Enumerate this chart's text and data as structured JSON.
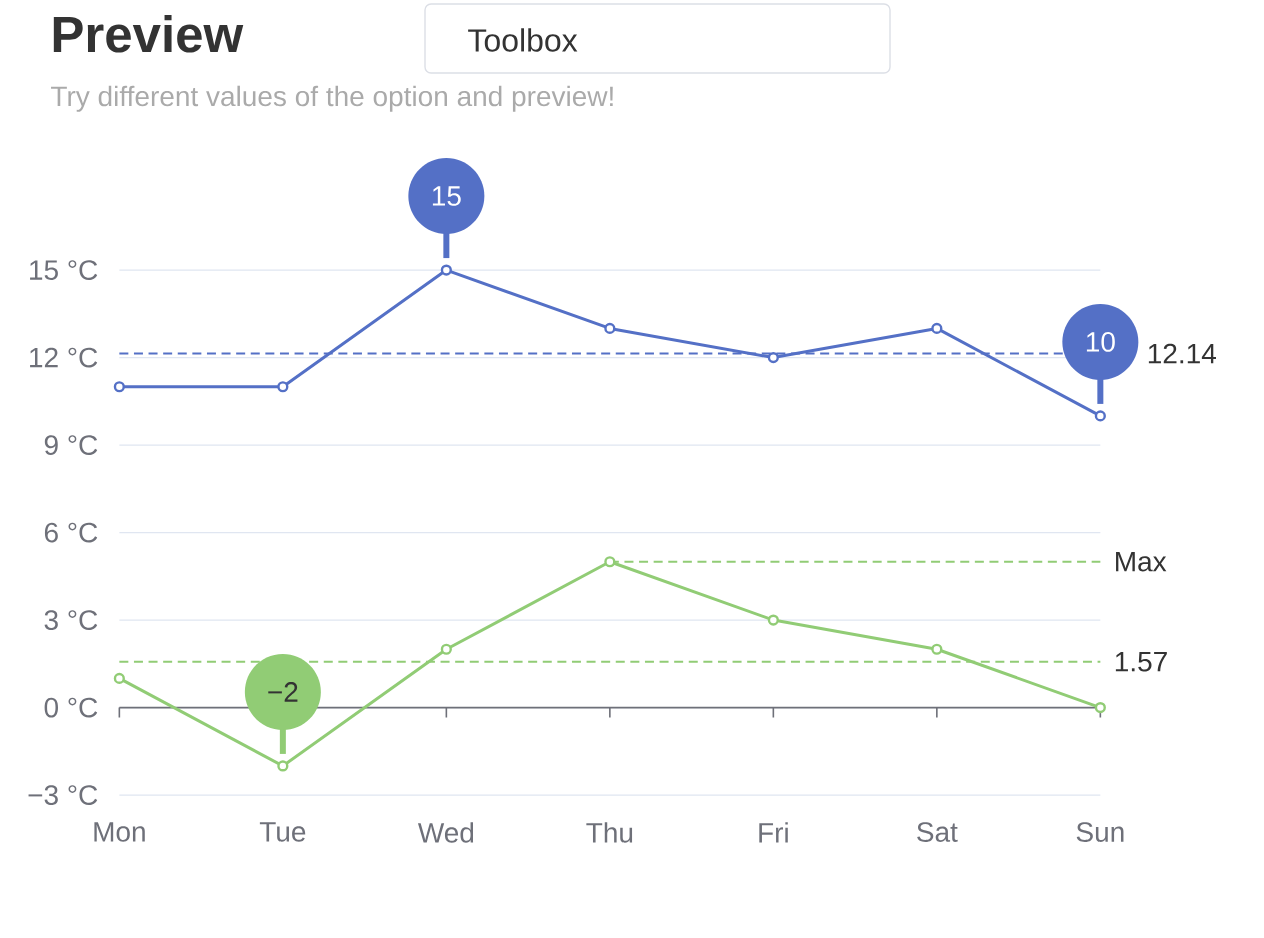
{
  "chart_data": {
    "type": "line",
    "title": "Preview",
    "subtitle": "Try different values of the option and preview!",
    "annotations": [
      "Toolbox"
    ],
    "categories": [
      "Mon",
      "Tue",
      "Wed",
      "Thu",
      "Fri",
      "Sat",
      "Sun"
    ],
    "series": [
      {
        "color": "#5470c6",
        "values": [
          11,
          11,
          15,
          13,
          12,
          13,
          10
        ],
        "value_labels": [
          null,
          null,
          "15",
          null,
          null,
          null,
          "10"
        ]
      },
      {
        "color": "#91cc75",
        "values": [
          1,
          -2,
          2,
          5,
          3,
          2,
          0
        ],
        "value_labels": [
          null,
          "−2",
          null,
          null,
          null,
          null,
          null
        ]
      }
    ],
    "ylim": [
      -3,
      15
    ],
    "yticks": [
      {
        "value": -3,
        "label": "−3 °C"
      },
      {
        "value": 0,
        "label": "0 °C"
      },
      {
        "value": 3,
        "label": "3 °C"
      },
      {
        "value": 6,
        "label": "6 °C"
      },
      {
        "value": 9,
        "label": "9 °C"
      },
      {
        "value": 12,
        "label": "12 °C"
      },
      {
        "value": 15,
        "label": "15 °C"
      }
    ],
    "grid": "y",
    "marker": "circle",
    "ref_lines": [
      {
        "axis": "y",
        "value": 12.14,
        "label": "12.14",
        "color": "#5470c6",
        "line_style": "dashed"
      },
      {
        "axis": "y",
        "value": 5,
        "label": "Max",
        "color": "#91cc75",
        "line_style": "dashed"
      },
      {
        "axis": "y",
        "value": 1.57,
        "label": "1.57",
        "color": "#91cc75",
        "line_style": "dashed"
      }
    ]
  }
}
